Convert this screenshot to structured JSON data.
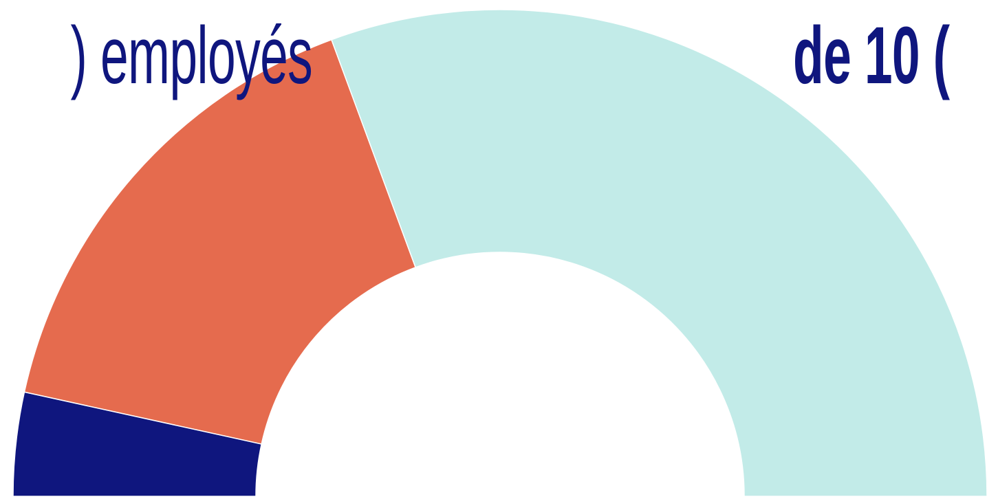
{
  "chart_data": {
    "type": "pie",
    "style": "half-donut",
    "slices": [
      {
        "value": 5.5,
        "color": "#0f167e"
      },
      {
        "value": 25.5,
        "color": "#e56b4e"
      },
      {
        "value": 49,
        "color": "#c2ebe8"
      }
    ],
    "visible_text": {
      "left_fragment": ") employés",
      "right_fragment": "de 10 ("
    },
    "text_color": "#0f167e"
  }
}
